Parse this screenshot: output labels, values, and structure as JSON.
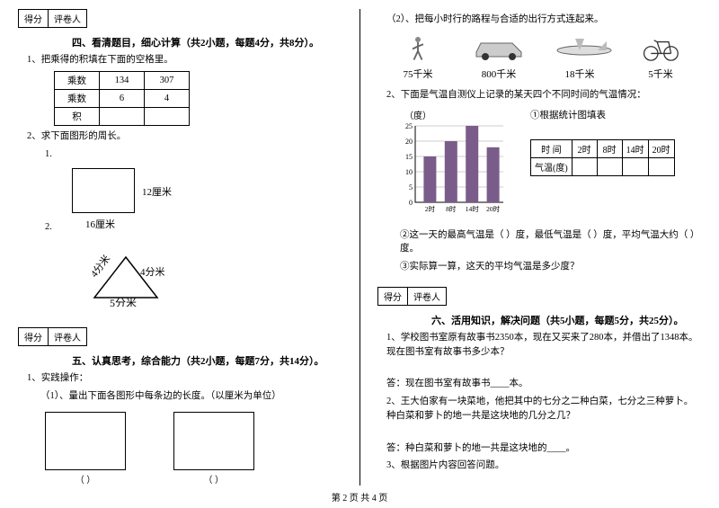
{
  "scorebox": {
    "col1": "得分",
    "col2": "评卷人"
  },
  "section4": {
    "title": "四、看清题目，细心计算（共2小题，每题4分，共8分）。",
    "q1": "1、把乘得的积填在下面的空格里。",
    "table": {
      "r1": [
        "乘数",
        "134",
        "307"
      ],
      "r2": [
        "乘数",
        "6",
        "4"
      ],
      "r3": [
        "积",
        "",
        ""
      ]
    },
    "q2": "2、求下面图形的周长。",
    "sub1": "1.",
    "rect_r": "12厘米",
    "rect_b": "16厘米",
    "sub2": "2.",
    "tri_l": "4分米",
    "tri_r": "4分米",
    "tri_b": "5分米"
  },
  "section5": {
    "title": "五、认真思考，综合能力（共2小题，每题7分，共14分）。",
    "q1": "1、实践操作：",
    "q1_1": "（1）、量出下面各图形中每条边的长度。（以厘米为单位）",
    "paren_l": "（        ）",
    "paren_r": "（        ）"
  },
  "right": {
    "q_link": "（2）、把每小时行的路程与合适的出行方式连起来。",
    "speeds": [
      "75千米",
      "800千米",
      "18千米",
      "5千米"
    ],
    "q_temp": "2、下面是气温自测仪上记录的某天四个不同时间的气温情况：",
    "y_label": "（度）",
    "chart_title": "①根据统计图填表",
    "y_ticks": [
      "25",
      "20",
      "15",
      "10",
      "5",
      "0"
    ],
    "x_ticks": [
      "2时",
      "8时",
      "14时",
      "20时"
    ],
    "bars": [
      15,
      20,
      25,
      18
    ],
    "bar_color": "#7a5c8a",
    "temp_table": {
      "r1": [
        "时 间",
        "2时",
        "8时",
        "14时",
        "20时"
      ],
      "r2": [
        "气温(度)",
        "",
        "",
        "",
        ""
      ]
    },
    "q_temp2": "②这一天的最高气温是（      ）度，最低气温是（      ）度，平均气温大约（      ）度。",
    "q_temp3": "③实际算一算，这天的平均气温是多少度？"
  },
  "section6": {
    "title": "六、活用知识，解决问题（共5小题，每题5分，共25分）。",
    "q1": "1、学校图书室原有故事书2350本，现在又买来了280本，并借出了1348本。现在图书室有故事书多少本？",
    "a1": "答：现在图书室有故事书____本。",
    "q2": "2、王大伯家有一块菜地，他把其中的七分之二种白菜，七分之三种萝卜。种白菜和萝卜的地一共是这块地的几分之几？",
    "a2": "答：种白菜和萝卜的地一共是这块地的____。",
    "q3": "3、根据图片内容回答问题。"
  },
  "footer": "第 2 页 共 4 页"
}
